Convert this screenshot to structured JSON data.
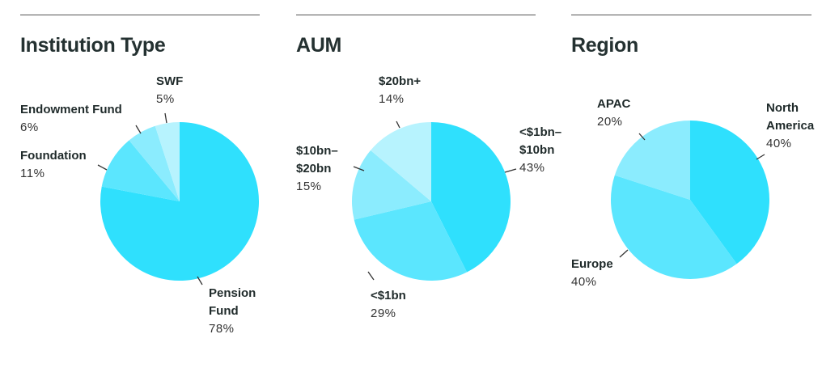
{
  "colors": [
    "#2fe0fd",
    "#5be6fe",
    "#8becfe",
    "#b7f3fe"
  ],
  "chart_data": [
    {
      "type": "pie",
      "title": "Institution Type",
      "slices": [
        {
          "label": "Pension Fund",
          "label_lines": [
            "Pension",
            "Fund"
          ],
          "value": 78,
          "pct": "78%"
        },
        {
          "label": "Foundation",
          "label_lines": [
            "Foundation"
          ],
          "value": 11,
          "pct": "11%"
        },
        {
          "label": "Endowment Fund",
          "label_lines": [
            "Endowment Fund"
          ],
          "value": 6,
          "pct": "6%"
        },
        {
          "label": "SWF",
          "label_lines": [
            "SWF"
          ],
          "value": 5,
          "pct": "5%"
        }
      ]
    },
    {
      "type": "pie",
      "title": "AUM",
      "slices": [
        {
          "label": "<$1bn–$10bn",
          "label_lines": [
            "<$1bn–",
            "$10bn"
          ],
          "value": 43,
          "pct": "43%"
        },
        {
          "label": "<$1bn",
          "label_lines": [
            "<$1bn"
          ],
          "value": 29,
          "pct": "29%"
        },
        {
          "label": "$10bn–$20bn",
          "label_lines": [
            "$10bn–",
            "$20bn"
          ],
          "value": 15,
          "pct": "15%"
        },
        {
          "label": "$20bn+",
          "label_lines": [
            "$20bn+"
          ],
          "value": 14,
          "pct": "14%"
        }
      ]
    },
    {
      "type": "pie",
      "title": "Region",
      "slices": [
        {
          "label": "North America",
          "label_lines": [
            "North",
            "America"
          ],
          "value": 40,
          "pct": "40%"
        },
        {
          "label": "Europe",
          "label_lines": [
            "Europe"
          ],
          "value": 40,
          "pct": "40%"
        },
        {
          "label": "APAC",
          "label_lines": [
            "APAC"
          ],
          "value": 20,
          "pct": "20%"
        }
      ]
    }
  ]
}
